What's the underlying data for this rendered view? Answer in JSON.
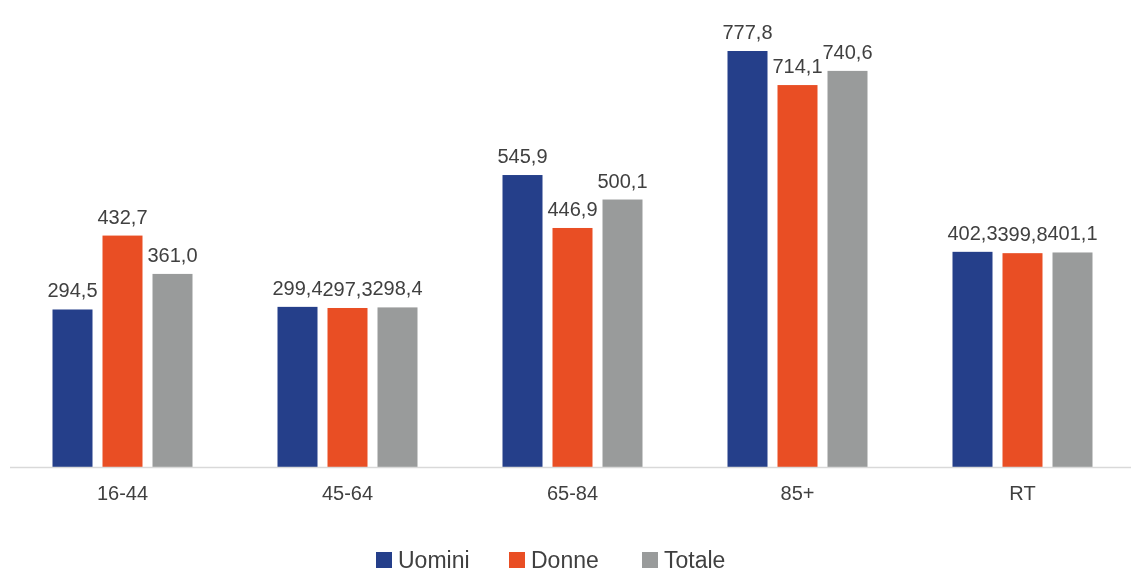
{
  "chart_data": {
    "type": "bar",
    "categories": [
      "16-44",
      "45-64",
      "65-84",
      "85+",
      "RT"
    ],
    "series": [
      {
        "name": "Uomini",
        "color": "#253f8a",
        "values": [
          294.5,
          299.4,
          545.9,
          777.8,
          402.3
        ],
        "value_labels": [
          "294,5",
          "299,4",
          "545,9",
          "777,8",
          "402,3"
        ]
      },
      {
        "name": "Donne",
        "color": "#e94e24",
        "values": [
          432.7,
          297.3,
          446.9,
          714.1,
          399.8
        ],
        "value_labels": [
          "432,7",
          "297,3",
          "446,9",
          "714,1",
          "399,8"
        ]
      },
      {
        "name": "Totale",
        "color": "#999b9b",
        "values": [
          361.0,
          298.4,
          500.1,
          740.6,
          401.1
        ],
        "value_labels": [
          "361,0",
          "298,4",
          "500,1",
          "740,6",
          "401,1"
        ]
      }
    ],
    "legend": "bottom"
  }
}
